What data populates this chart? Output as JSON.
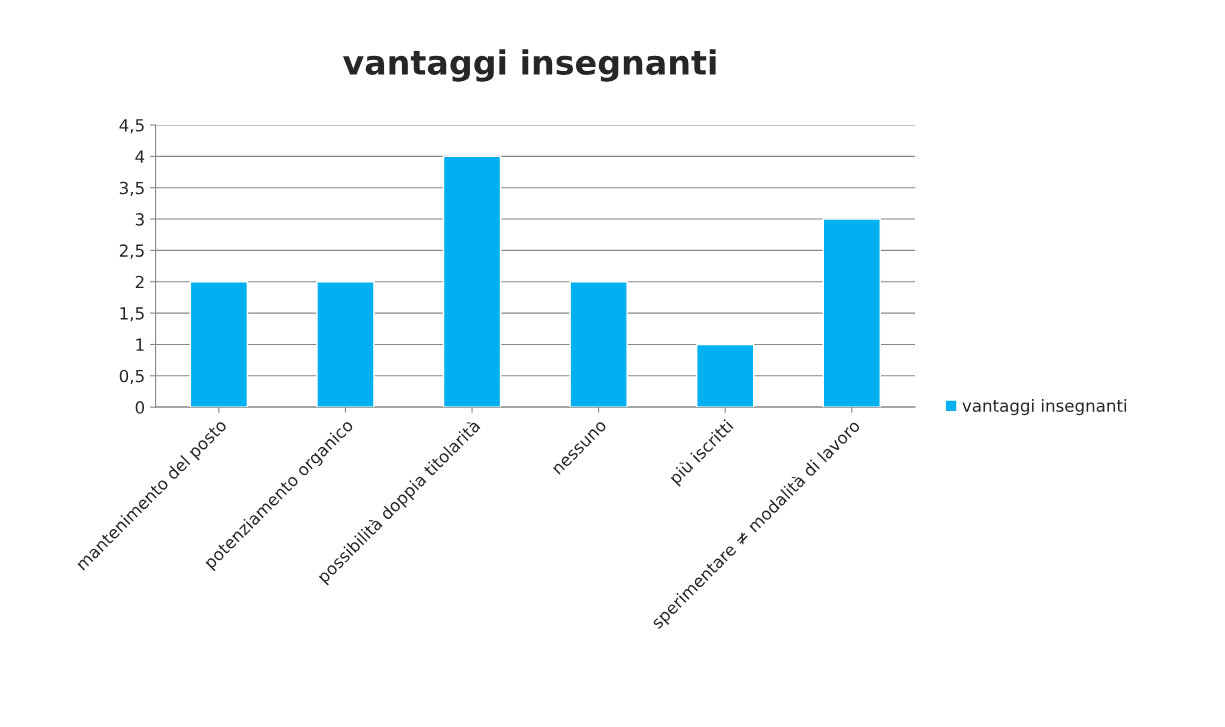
{
  "chart_data": {
    "type": "bar",
    "title": "vantaggi insegnanti",
    "categories": [
      "mantenimento del posto",
      "potenziamento organico",
      "possibilità doppia titolarità",
      "nessuno",
      "più iscritti",
      "sperimentare ≠ modalità di lavoro"
    ],
    "series": [
      {
        "name": "vantaggi insegnanti",
        "color": "#00b0f0",
        "values": [
          2,
          2,
          4,
          2,
          1,
          3
        ]
      }
    ],
    "ylim": [
      0,
      4.5
    ],
    "yticks": [
      0,
      {
        "value": 0.5,
        "label": "0,5"
      },
      1,
      {
        "value": 1.5,
        "label": "1,5"
      },
      2,
      {
        "value": 2.5,
        "label": "2,5"
      },
      3,
      {
        "value": 3.5,
        "label": "3,5"
      },
      4,
      {
        "value": 4.5,
        "label": "4,5"
      }
    ],
    "grid": "y",
    "legend": "right"
  }
}
